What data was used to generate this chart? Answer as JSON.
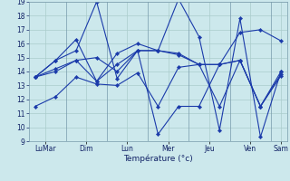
{
  "background_color": "#cce8ec",
  "grid_color": "#aacccc",
  "line_color": "#1a3aaa",
  "xlabel": "Température (°c)",
  "ylim": [
    9,
    19
  ],
  "yticks": [
    9,
    10,
    11,
    12,
    13,
    14,
    15,
    16,
    17,
    18,
    19
  ],
  "day_labels": [
    "LuMar",
    "Dim",
    "Lun",
    "Mer",
    "Jeu",
    "Ven",
    "Sam"
  ],
  "series": [
    [
      11.5,
      12.2,
      13.6,
      13.1,
      13.0,
      13.9,
      11.5,
      14.3,
      14.5,
      11.5,
      14.8,
      11.5,
      13.8
    ],
    [
      13.6,
      14.8,
      16.3,
      13.3,
      15.3,
      16.0,
      15.5,
      19.2,
      16.5,
      9.8,
      17.8,
      9.3,
      14.0
    ],
    [
      13.6,
      14.0,
      14.8,
      15.0,
      14.0,
      15.5,
      15.5,
      15.2,
      14.5,
      14.5,
      14.8,
      11.5,
      14.0
    ],
    [
      13.6,
      14.8,
      15.5,
      19.0,
      13.5,
      15.5,
      9.5,
      11.5,
      11.5,
      14.5,
      16.8,
      17.0,
      16.2
    ],
    [
      13.6,
      14.2,
      14.8,
      13.3,
      14.5,
      15.5,
      15.5,
      15.3,
      14.5,
      14.5,
      14.8,
      11.5,
      13.7
    ]
  ]
}
